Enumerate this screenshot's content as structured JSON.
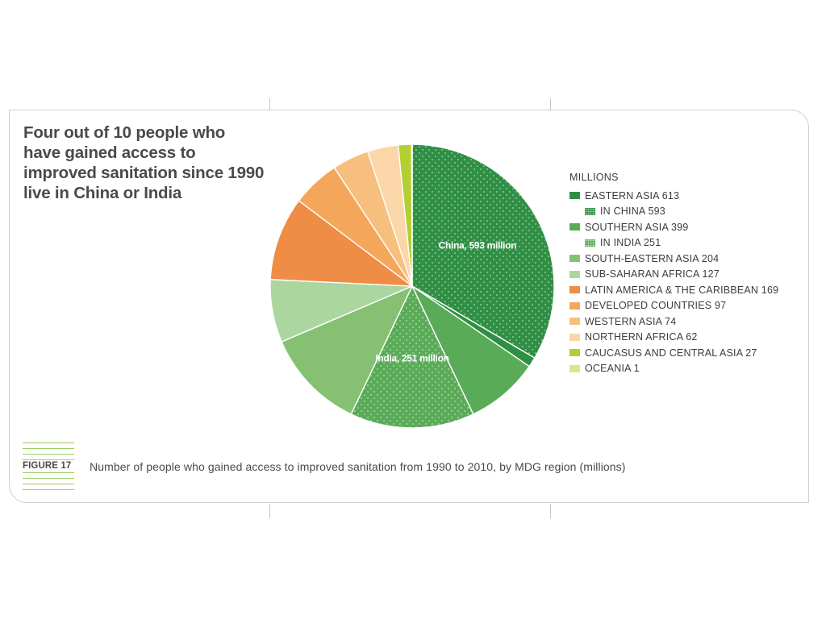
{
  "headline": "Four out of 10 people who have gained access to improved sanitation since 1990 live in China or India",
  "figure": {
    "label": "FIGURE 17",
    "caption": "Number of people who gained access to improved sanitation from 1990 to 2010, by MDG region (millions)"
  },
  "chart_data": {
    "type": "pie",
    "title": "Four out of 10 people who have gained access to improved sanitation since 1990 live in China or India",
    "unit_label": "MILLIONS",
    "start_angle_deg": 0,
    "direction": "clockwise",
    "slices": [
      {
        "name": "IN CHINA",
        "value": 593,
        "color": "#2f8f44",
        "pattern": "dots",
        "label": "China, 593 million"
      },
      {
        "name": "EASTERN ASIA (rest)",
        "value": 20,
        "color": "#2f8f44",
        "pattern": "none",
        "label": ""
      },
      {
        "name": "SOUTHERN ASIA (rest)",
        "value": 148,
        "color": "#5aab57",
        "pattern": "none",
        "label": ""
      },
      {
        "name": "IN INDIA",
        "value": 251,
        "color": "#5aab57",
        "pattern": "dots",
        "label": "India, 251 million"
      },
      {
        "name": "SOUTH-EASTERN ASIA",
        "value": 204,
        "color": "#86c173",
        "pattern": "none",
        "label": ""
      },
      {
        "name": "SUB-SAHARAN AFRICA",
        "value": 127,
        "color": "#acd6a0",
        "pattern": "none",
        "label": ""
      },
      {
        "name": "LATIN AMERICA & THE CARIBBEAN",
        "value": 169,
        "color": "#ef8c45",
        "pattern": "none",
        "label": ""
      },
      {
        "name": "DEVELOPED COUNTRIES",
        "value": 97,
        "color": "#f4a65a",
        "pattern": "none",
        "label": ""
      },
      {
        "name": "WESTERN ASIA",
        "value": 74,
        "color": "#f7bf7e",
        "pattern": "none",
        "label": ""
      },
      {
        "name": "NORTHERN AFRICA",
        "value": 62,
        "color": "#fad6a9",
        "pattern": "none",
        "label": ""
      },
      {
        "name": "CAUCASUS AND CENTRAL ASIA",
        "value": 27,
        "color": "#b3cf32",
        "pattern": "none",
        "label": ""
      },
      {
        "name": "OCEANIA",
        "value": 1,
        "color": "#d8e68c",
        "pattern": "none",
        "label": ""
      }
    ],
    "legend": [
      {
        "text": "EASTERN ASIA 613",
        "color": "#2f8f44",
        "pattern": "none",
        "indent": false
      },
      {
        "text": "IN CHINA 593",
        "color": "#2f8f44",
        "pattern": "dots",
        "indent": true
      },
      {
        "text": "SOUTHERN ASIA 399",
        "color": "#5aab57",
        "pattern": "none",
        "indent": false
      },
      {
        "text": "IN INDIA 251",
        "color": "#5aab57",
        "pattern": "dots",
        "indent": true
      },
      {
        "text": "SOUTH-EASTERN ASIA 204",
        "color": "#86c173",
        "pattern": "none",
        "indent": false
      },
      {
        "text": "SUB-SAHARAN AFRICA 127",
        "color": "#acd6a0",
        "pattern": "none",
        "indent": false
      },
      {
        "text": "LATIN AMERICA & THE CARIBBEAN 169",
        "color": "#ef8c45",
        "pattern": "none",
        "indent": false
      },
      {
        "text": "DEVELOPED COUNTRIES 97",
        "color": "#f4a65a",
        "pattern": "none",
        "indent": false
      },
      {
        "text": "WESTERN ASIA 74",
        "color": "#f7bf7e",
        "pattern": "none",
        "indent": false
      },
      {
        "text": "NORTHERN AFRICA 62",
        "color": "#fad6a9",
        "pattern": "none",
        "indent": false
      },
      {
        "text": "CAUCASUS AND CENTRAL ASIA 27",
        "color": "#b3cf32",
        "pattern": "none",
        "indent": false
      },
      {
        "text": "OCEANIA 1",
        "color": "#d8e68c",
        "pattern": "none",
        "indent": false
      }
    ]
  }
}
